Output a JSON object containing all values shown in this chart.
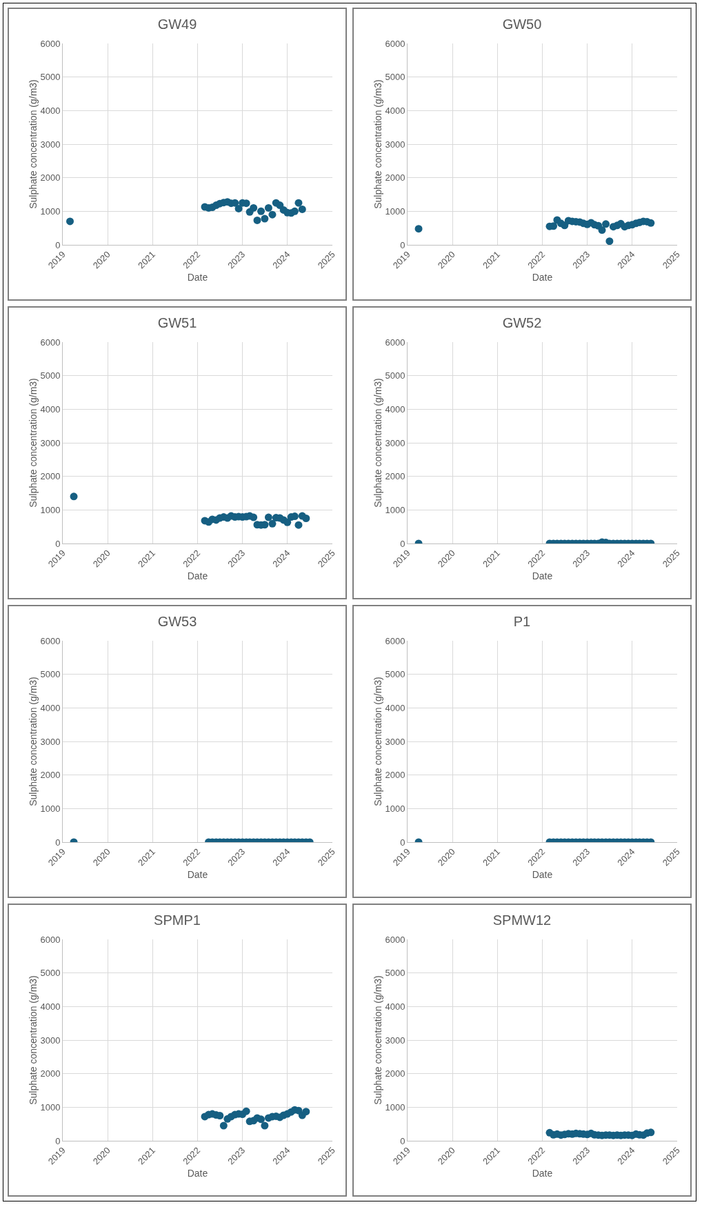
{
  "chart_data": [
    {
      "type": "scatter",
      "title": "GW49",
      "xlabel": "Date",
      "ylabel": "Sulphate concentration (g/m3)",
      "color": "#165f82",
      "marker": "circle",
      "grid": true,
      "xlim": [
        "2019",
        "2025"
      ],
      "xticks": [
        "2019",
        "2020",
        "2021",
        "2022",
        "2023",
        "2024",
        "2025"
      ],
      "ylim": [
        0,
        6000
      ],
      "yticks": [
        0,
        1000,
        2000,
        3000,
        4000,
        5000,
        6000
      ],
      "x": [
        "2019-03",
        "2022-03",
        "2022-04",
        "2022-05",
        "2022-06",
        "2022-07",
        "2022-08",
        "2022-09",
        "2022-10",
        "2022-11",
        "2022-12",
        "2023-01",
        "2023-02",
        "2023-03",
        "2023-04",
        "2023-05",
        "2023-06",
        "2023-07",
        "2023-08",
        "2023-09",
        "2023-10",
        "2023-11",
        "2023-12",
        "2024-01",
        "2024-02",
        "2024-03",
        "2024-04",
        "2024-05"
      ],
      "values": [
        700,
        1130,
        1100,
        1120,
        1180,
        1230,
        1260,
        1280,
        1240,
        1250,
        1080,
        1250,
        1240,
        980,
        1100,
        730,
        1000,
        780,
        1100,
        900,
        1250,
        1180,
        1040,
        960,
        950,
        1000,
        1250,
        1060
      ]
    },
    {
      "type": "scatter",
      "title": "GW50",
      "xlabel": "Date",
      "ylabel": "Sulphate concentration (g/m3)",
      "color": "#165f82",
      "marker": "circle",
      "grid": true,
      "xlim": [
        "2019",
        "2025"
      ],
      "xticks": [
        "2019",
        "2020",
        "2021",
        "2022",
        "2023",
        "2024",
        "2025"
      ],
      "ylim": [
        0,
        6000
      ],
      "yticks": [
        0,
        1000,
        2000,
        3000,
        4000,
        5000,
        6000
      ],
      "x": [
        "2019-04",
        "2022-03",
        "2022-04",
        "2022-05",
        "2022-06",
        "2022-07",
        "2022-08",
        "2022-09",
        "2022-10",
        "2022-11",
        "2022-12",
        "2023-01",
        "2023-02",
        "2023-03",
        "2023-04",
        "2023-05",
        "2023-06",
        "2023-07",
        "2023-08",
        "2023-09",
        "2023-10",
        "2023-11",
        "2023-12",
        "2024-01",
        "2024-02",
        "2024-03",
        "2024-04",
        "2024-05",
        "2024-06"
      ],
      "values": [
        480,
        550,
        560,
        740,
        640,
        580,
        720,
        700,
        690,
        680,
        640,
        610,
        660,
        600,
        570,
        440,
        620,
        110,
        540,
        580,
        630,
        540,
        580,
        600,
        640,
        670,
        700,
        690,
        650
      ]
    },
    {
      "type": "scatter",
      "title": "GW51",
      "xlabel": "Date",
      "ylabel": "Sulphate concentration (g/m3)",
      "color": "#165f82",
      "marker": "circle",
      "grid": true,
      "xlim": [
        "2019",
        "2025"
      ],
      "xticks": [
        "2019",
        "2020",
        "2021",
        "2022",
        "2023",
        "2024",
        "2025"
      ],
      "ylim": [
        0,
        6000
      ],
      "yticks": [
        0,
        1000,
        2000,
        3000,
        4000,
        5000,
        6000
      ],
      "x": [
        "2019-04",
        "2022-03",
        "2022-04",
        "2022-05",
        "2022-06",
        "2022-07",
        "2022-08",
        "2022-09",
        "2022-10",
        "2022-11",
        "2022-12",
        "2023-01",
        "2023-02",
        "2023-03",
        "2023-04",
        "2023-05",
        "2023-06",
        "2023-07",
        "2023-08",
        "2023-09",
        "2023-10",
        "2023-11",
        "2023-12",
        "2024-01",
        "2024-02",
        "2024-03",
        "2024-04",
        "2024-05",
        "2024-06"
      ],
      "values": [
        1400,
        680,
        640,
        720,
        700,
        760,
        790,
        760,
        820,
        790,
        800,
        790,
        800,
        820,
        780,
        560,
        550,
        560,
        780,
        590,
        770,
        760,
        700,
        630,
        790,
        810,
        550,
        820,
        750
      ]
    },
    {
      "type": "scatter",
      "title": "GW52",
      "xlabel": "Date",
      "ylabel": "Sulphate concentration (g/m3)",
      "color": "#165f82",
      "marker": "circle",
      "grid": true,
      "xlim": [
        "2019",
        "2025"
      ],
      "xticks": [
        "2019",
        "2020",
        "2021",
        "2022",
        "2023",
        "2024",
        "2025"
      ],
      "ylim": [
        0,
        6000
      ],
      "yticks": [
        0,
        1000,
        2000,
        3000,
        4000,
        5000,
        6000
      ],
      "x": [
        "2019-04",
        "2022-03",
        "2022-04",
        "2022-05",
        "2022-06",
        "2022-07",
        "2022-08",
        "2022-09",
        "2022-10",
        "2022-11",
        "2022-12",
        "2023-01",
        "2023-02",
        "2023-03",
        "2023-04",
        "2023-05",
        "2023-06",
        "2023-07",
        "2023-08",
        "2023-09",
        "2023-10",
        "2023-11",
        "2023-12",
        "2024-01",
        "2024-02",
        "2024-03",
        "2024-04",
        "2024-05",
        "2024-06"
      ],
      "values": [
        0,
        0,
        0,
        0,
        0,
        0,
        0,
        0,
        0,
        0,
        0,
        0,
        0,
        0,
        0,
        40,
        30,
        0,
        0,
        0,
        0,
        0,
        0,
        0,
        0,
        0,
        0,
        0,
        0
      ]
    },
    {
      "type": "scatter",
      "title": "GW53",
      "xlabel": "Date",
      "ylabel": "Sulphate concentration (g/m3)",
      "color": "#165f82",
      "marker": "circle",
      "grid": true,
      "xlim": [
        "2019",
        "2025"
      ],
      "xticks": [
        "2019",
        "2020",
        "2021",
        "2022",
        "2023",
        "2024",
        "2025"
      ],
      "ylim": [
        0,
        6000
      ],
      "yticks": [
        0,
        1000,
        2000,
        3000,
        4000,
        5000,
        6000
      ],
      "x": [
        "2019-04",
        "2022-04",
        "2022-05",
        "2022-06",
        "2022-07",
        "2022-08",
        "2022-09",
        "2022-10",
        "2022-11",
        "2022-12",
        "2023-01",
        "2023-02",
        "2023-03",
        "2023-04",
        "2023-05",
        "2023-06",
        "2023-07",
        "2023-08",
        "2023-09",
        "2023-10",
        "2023-11",
        "2023-12",
        "2024-01",
        "2024-02",
        "2024-03",
        "2024-04",
        "2024-05",
        "2024-06",
        "2024-07"
      ],
      "values": [
        0,
        0,
        0,
        0,
        0,
        0,
        0,
        0,
        0,
        0,
        0,
        0,
        0,
        0,
        0,
        0,
        0,
        0,
        0,
        0,
        0,
        0,
        0,
        0,
        0,
        0,
        0,
        0,
        0
      ]
    },
    {
      "type": "scatter",
      "title": "P1",
      "xlabel": "Date",
      "ylabel": "Sulphate concentration (g/m3)",
      "color": "#165f82",
      "marker": "circle",
      "grid": true,
      "xlim": [
        "2019",
        "2025"
      ],
      "xticks": [
        "2019",
        "2020",
        "2021",
        "2022",
        "2023",
        "2024",
        "2025"
      ],
      "ylim": [
        0,
        6000
      ],
      "yticks": [
        0,
        1000,
        2000,
        3000,
        4000,
        5000,
        6000
      ],
      "x": [
        "2019-04",
        "2022-03",
        "2022-04",
        "2022-05",
        "2022-06",
        "2022-07",
        "2022-08",
        "2022-09",
        "2022-10",
        "2022-11",
        "2022-12",
        "2023-01",
        "2023-02",
        "2023-03",
        "2023-04",
        "2023-05",
        "2023-06",
        "2023-07",
        "2023-08",
        "2023-09",
        "2023-10",
        "2023-11",
        "2023-12",
        "2024-01",
        "2024-02",
        "2024-03",
        "2024-04",
        "2024-05",
        "2024-06"
      ],
      "values": [
        0,
        0,
        0,
        0,
        0,
        0,
        0,
        0,
        0,
        0,
        0,
        0,
        0,
        0,
        0,
        0,
        0,
        0,
        0,
        0,
        0,
        0,
        0,
        0,
        0,
        0,
        0,
        0,
        0
      ]
    },
    {
      "type": "scatter",
      "title": "SPMP1",
      "xlabel": "Date",
      "ylabel": "Sulphate concentration (g/m3)",
      "color": "#165f82",
      "marker": "circle",
      "grid": true,
      "xlim": [
        "2019",
        "2025"
      ],
      "xticks": [
        "2019",
        "2020",
        "2021",
        "2022",
        "2023",
        "2024",
        "2025"
      ],
      "ylim": [
        0,
        6000
      ],
      "yticks": [
        0,
        1000,
        2000,
        3000,
        4000,
        5000,
        6000
      ],
      "x": [
        "2022-03",
        "2022-04",
        "2022-05",
        "2022-06",
        "2022-07",
        "2022-08",
        "2022-09",
        "2022-10",
        "2022-11",
        "2022-12",
        "2023-01",
        "2023-02",
        "2023-03",
        "2023-04",
        "2023-05",
        "2023-06",
        "2023-07",
        "2023-08",
        "2023-09",
        "2023-10",
        "2023-11",
        "2023-12",
        "2024-01",
        "2024-02",
        "2024-03",
        "2024-04",
        "2024-05",
        "2024-06"
      ],
      "values": [
        720,
        780,
        800,
        770,
        750,
        450,
        650,
        720,
        780,
        800,
        790,
        880,
        580,
        600,
        680,
        640,
        450,
        680,
        720,
        730,
        700,
        760,
        800,
        860,
        920,
        900,
        760,
        870
      ]
    },
    {
      "type": "scatter",
      "title": "SPMW12",
      "xlabel": "Date",
      "ylabel": "Sulphate concentration (g/m3)",
      "color": "#165f82",
      "marker": "circle",
      "grid": true,
      "xlim": [
        "2019",
        "2025"
      ],
      "xticks": [
        "2019",
        "2020",
        "2021",
        "2022",
        "2023",
        "2024",
        "2025"
      ],
      "ylim": [
        0,
        6000
      ],
      "yticks": [
        0,
        1000,
        2000,
        3000,
        4000,
        5000,
        6000
      ],
      "x": [
        "2022-03",
        "2022-04",
        "2022-05",
        "2022-06",
        "2022-07",
        "2022-08",
        "2022-09",
        "2022-10",
        "2022-11",
        "2022-12",
        "2023-01",
        "2023-02",
        "2023-03",
        "2023-04",
        "2023-05",
        "2023-06",
        "2023-07",
        "2023-08",
        "2023-09",
        "2023-10",
        "2023-11",
        "2023-12",
        "2024-01",
        "2024-02",
        "2024-03",
        "2024-04",
        "2024-05",
        "2024-06"
      ],
      "values": [
        240,
        180,
        200,
        170,
        190,
        210,
        200,
        220,
        210,
        200,
        190,
        220,
        180,
        170,
        160,
        170,
        170,
        160,
        170,
        160,
        170,
        170,
        160,
        200,
        180,
        170,
        230,
        250
      ]
    }
  ]
}
